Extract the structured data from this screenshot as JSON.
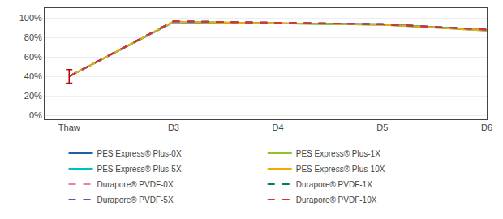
{
  "chart_data": {
    "type": "line",
    "categories": [
      "Thaw",
      "D3",
      "D4",
      "D5",
      "D6"
    ],
    "series": [
      {
        "name": "PES Express® Plus-0X",
        "color": "#1F5FA6",
        "line_style": "solid",
        "values": [
          0.4,
          0.955,
          0.945,
          0.935,
          0.875
        ]
      },
      {
        "name": "PES Express® Plus-1X",
        "color": "#92C12A",
        "line_style": "solid",
        "values": [
          0.4,
          0.96,
          0.945,
          0.93,
          0.875
        ]
      },
      {
        "name": "PES Express® Plus-5X",
        "color": "#00BFBF",
        "line_style": "solid",
        "values": [
          0.4,
          0.96,
          0.945,
          0.93,
          0.87
        ]
      },
      {
        "name": "PES Express® Plus-10X",
        "color": "#F5A800",
        "line_style": "solid",
        "values": [
          0.4,
          0.96,
          0.945,
          0.93,
          0.87
        ]
      },
      {
        "name": "Durapore® PVDF-0X",
        "color": "#F080A0",
        "line_style": "dashed",
        "values": [
          0.4,
          0.965,
          0.95,
          0.935,
          0.88
        ]
      },
      {
        "name": "Durapore® PVDF-1X",
        "color": "#008060",
        "line_style": "dashed",
        "values": [
          0.4,
          0.965,
          0.95,
          0.935,
          0.88
        ]
      },
      {
        "name": "Durapore® PVDF-5X",
        "color": "#6050B0",
        "line_style": "dashed",
        "values": [
          0.4,
          0.965,
          0.95,
          0.935,
          0.88
        ]
      },
      {
        "name": "Durapore® PVDF-10X",
        "color": "#E03030",
        "line_style": "dashed",
        "values": [
          0.4,
          0.965,
          0.95,
          0.935,
          0.88
        ]
      }
    ],
    "error_bar": {
      "category": "Thaw",
      "value": 0.4,
      "error": 0.07,
      "color": "#C00000"
    },
    "ylim": [
      -0.04,
      1.1
    ],
    "yticks": [
      {
        "value": 0.0,
        "label": "0%"
      },
      {
        "value": 0.2,
        "label": "20%"
      },
      {
        "value": 0.4,
        "label": "40%"
      },
      {
        "value": 0.6,
        "label": "60%"
      },
      {
        "value": 0.8,
        "label": "80%"
      },
      {
        "value": 1.0,
        "label": "100%"
      }
    ],
    "grid": true,
    "legend": "bottom"
  }
}
